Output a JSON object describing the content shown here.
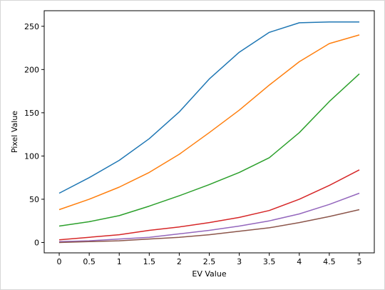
{
  "chart_data": {
    "type": "line",
    "title": "",
    "xlabel": "EV Value",
    "ylabel": "Pixel Value",
    "xlim": [
      -0.25,
      5.25
    ],
    "ylim": [
      -12,
      268
    ],
    "grid": false,
    "legend": "none",
    "x": [
      0,
      0.5,
      1,
      1.5,
      2,
      2.5,
      3,
      3.5,
      4,
      4.5,
      5
    ],
    "x_tick_labels": [
      "0",
      "0.5",
      "1",
      "1.5",
      "2",
      "2.5",
      "3",
      "3.5",
      "4",
      "4.5",
      "5"
    ],
    "y_ticks": [
      0,
      50,
      100,
      150,
      200,
      250
    ],
    "y_tick_labels": [
      "0",
      "50",
      "100",
      "150",
      "200",
      "250"
    ],
    "series": [
      {
        "color": "#1f77b4",
        "values": [
          57,
          75,
          95,
          120,
          151,
          189,
          220,
          243,
          254,
          255,
          255
        ]
      },
      {
        "color": "#ff7f0e",
        "values": [
          38,
          50,
          64,
          81,
          102,
          127,
          153,
          182,
          209,
          230,
          240
        ]
      },
      {
        "color": "#2ca02c",
        "values": [
          19,
          24,
          31,
          42,
          54,
          67,
          81,
          98,
          127,
          163,
          195
        ]
      },
      {
        "color": "#d62728",
        "values": [
          3,
          6,
          9,
          14,
          18,
          23,
          29,
          37,
          50,
          66,
          84
        ]
      },
      {
        "color": "#9467bd",
        "values": [
          1,
          2,
          4,
          6,
          10,
          14,
          19,
          25,
          33,
          44,
          57
        ]
      },
      {
        "color": "#8c564b",
        "values": [
          0,
          1,
          2,
          4,
          6,
          9,
          13,
          17,
          23,
          30,
          38
        ]
      }
    ]
  }
}
